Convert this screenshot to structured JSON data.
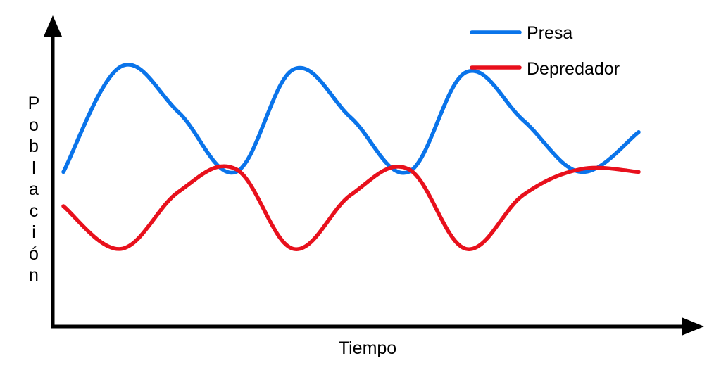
{
  "chart_data": {
    "type": "line",
    "xlabel": "Tiempo",
    "ylabel": "Población",
    "grid": false,
    "legend": "top-right",
    "xlim": [
      0,
      10
    ],
    "ylim": [
      0,
      10
    ],
    "series": [
      {
        "name": "Presa",
        "color": "#0a74ea",
        "x": [
          0,
          1,
          2,
          3,
          4,
          5,
          6,
          7,
          8,
          9,
          10
        ],
        "y": [
          5.2,
          8.9,
          7.3,
          5.2,
          8.8,
          7.1,
          5.2,
          8.7,
          7.0,
          5.2,
          6.6
        ]
      },
      {
        "name": "Depredador",
        "color": "#e8101c",
        "x": [
          0,
          1,
          2,
          3,
          4,
          5,
          6,
          7,
          8,
          9,
          10
        ],
        "y": [
          4.0,
          2.5,
          4.5,
          5.3,
          2.5,
          4.4,
          5.3,
          2.5,
          4.4,
          5.3,
          5.2
        ]
      }
    ]
  }
}
